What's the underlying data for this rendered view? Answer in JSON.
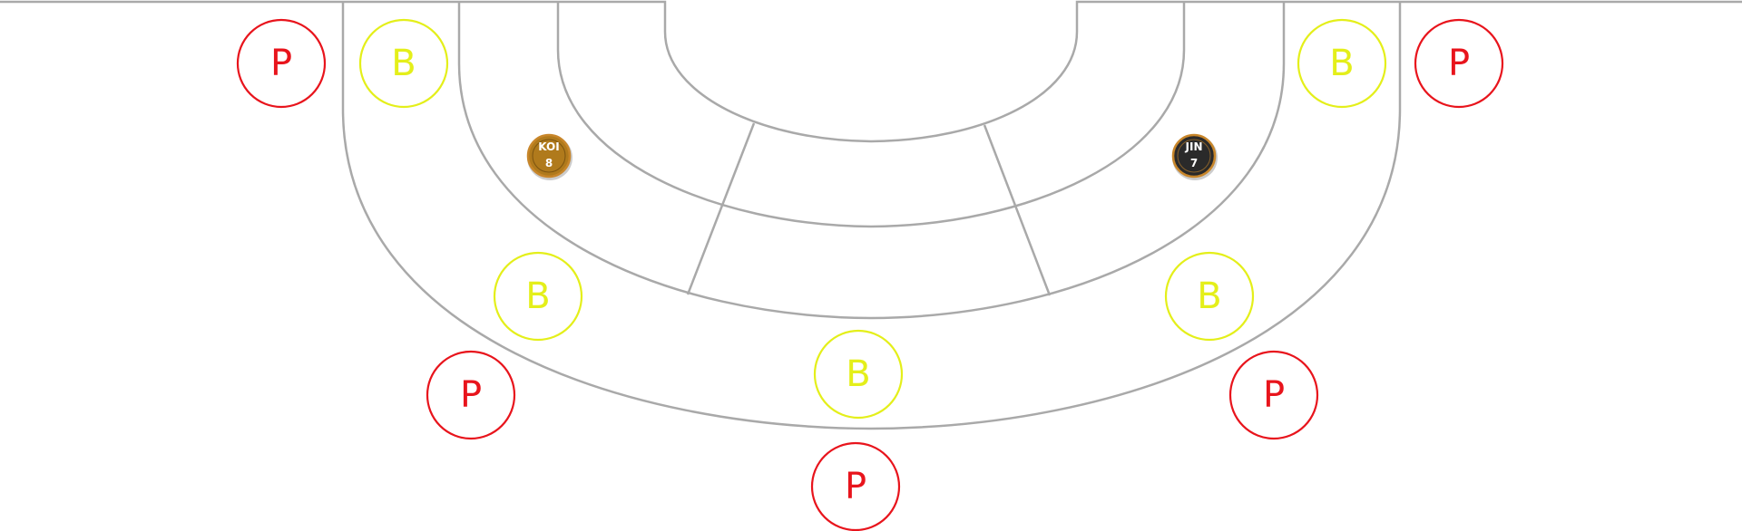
{
  "colors": {
    "track": "#a9a9a9",
    "player_spot": "#e8141c",
    "banker_spot": "#e4ef1a",
    "token_koi_fill": "#b07a1c",
    "token_jin_fill": "#2a2a2a",
    "token_ring": "#c8862a"
  },
  "spots": [
    {
      "id": "p-top-left",
      "letter": "P",
      "kind": "player"
    },
    {
      "id": "b-top-left",
      "letter": "B",
      "kind": "banker"
    },
    {
      "id": "b-top-right",
      "letter": "B",
      "kind": "banker"
    },
    {
      "id": "p-top-right",
      "letter": "P",
      "kind": "player"
    },
    {
      "id": "b-mid-left",
      "letter": "B",
      "kind": "banker"
    },
    {
      "id": "b-mid-right",
      "letter": "B",
      "kind": "banker"
    },
    {
      "id": "b-bottom-center",
      "letter": "B",
      "kind": "banker"
    },
    {
      "id": "p-low-left",
      "letter": "P",
      "kind": "player"
    },
    {
      "id": "p-low-right",
      "letter": "P",
      "kind": "player"
    },
    {
      "id": "p-bottom-center",
      "letter": "P",
      "kind": "player"
    }
  ],
  "tokens": [
    {
      "id": "token-koi",
      "name": "KOI",
      "value": "8",
      "style": "gold"
    },
    {
      "id": "token-jin",
      "name": "JIN",
      "value": "7",
      "style": "dark"
    }
  ]
}
